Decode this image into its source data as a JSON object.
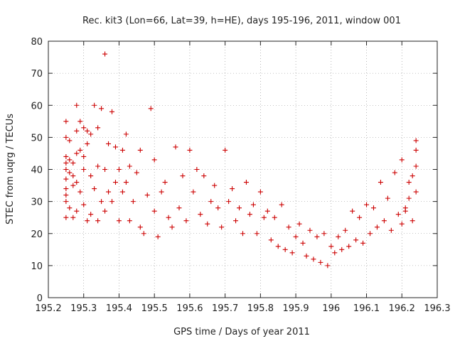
{
  "chart_data": {
    "type": "scatter",
    "title": "Rec. kit3 (Lon=66, Lat=39, h=HE), days 195-196, 2011, window 001",
    "xlabel": "GPS time / Days of year 2011",
    "ylabel": "STEC from uqrg / TECUs",
    "xlim": [
      195.2,
      196.3
    ],
    "ylim": [
      0,
      80
    ],
    "xticks": [
      "195.2",
      "195.3",
      "195.4",
      "195.5",
      "195.6",
      "195.7",
      "195.8",
      "195.9",
      "196",
      "196.1",
      "196.2",
      "196.3"
    ],
    "yticks": [
      "0",
      "10",
      "20",
      "30",
      "40",
      "50",
      "60",
      "70",
      "80"
    ],
    "grid": true,
    "legend": "none",
    "marker": "plus",
    "color": "#cc0000",
    "x": [
      195.25,
      195.25,
      195.25,
      195.25,
      195.25,
      195.25,
      195.25,
      195.25,
      195.25,
      195.25,
      195.26,
      195.26,
      195.26,
      195.26,
      195.27,
      195.27,
      195.27,
      195.27,
      195.28,
      195.28,
      195.28,
      195.28,
      195.28,
      195.29,
      195.29,
      195.29,
      195.3,
      195.3,
      195.3,
      195.3,
      195.31,
      195.31,
      195.31,
      195.32,
      195.32,
      195.32,
      195.33,
      195.33,
      195.34,
      195.34,
      195.34,
      195.35,
      195.35,
      195.36,
      195.36,
      195.36,
      195.37,
      195.37,
      195.38,
      195.38,
      195.39,
      195.39,
      195.4,
      195.4,
      195.41,
      195.41,
      195.42,
      195.42,
      195.43,
      195.43,
      195.44,
      195.45,
      195.46,
      195.46,
      195.47,
      195.48,
      195.49,
      195.5,
      195.5,
      195.51,
      195.52,
      195.53,
      195.54,
      195.55,
      195.56,
      195.57,
      195.58,
      195.59,
      195.6,
      195.61,
      195.62,
      195.63,
      195.64,
      195.65,
      195.66,
      195.67,
      195.68,
      195.69,
      195.7,
      195.71,
      195.72,
      195.73,
      195.74,
      195.75,
      195.76,
      195.77,
      195.78,
      195.79,
      195.8,
      195.81,
      195.82,
      195.83,
      195.84,
      195.85,
      195.86,
      195.87,
      195.88,
      195.89,
      195.9,
      195.91,
      195.92,
      195.93,
      195.94,
      195.95,
      195.96,
      195.97,
      195.98,
      195.99,
      196.0,
      196.01,
      196.02,
      196.03,
      196.04,
      196.05,
      196.06,
      196.07,
      196.08,
      196.09,
      196.1,
      196.11,
      196.12,
      196.13,
      196.14,
      196.15,
      196.16,
      196.17,
      196.18,
      196.19,
      196.2,
      196.21,
      196.22,
      196.23,
      196.24,
      196.24,
      196.24,
      196.24,
      196.23,
      196.22,
      196.21,
      196.2
    ],
    "y": [
      55,
      50,
      44,
      40,
      37,
      34,
      30,
      25,
      42,
      32,
      49,
      43,
      39,
      28,
      38,
      42,
      35,
      25,
      60,
      52,
      45,
      36,
      27,
      55,
      46,
      33,
      53,
      44,
      29,
      40,
      52,
      48,
      24,
      51,
      38,
      26,
      60,
      34,
      53,
      41,
      24,
      59,
      30,
      76,
      40,
      27,
      48,
      33,
      58,
      30,
      47,
      36,
      40,
      24,
      46,
      33,
      51,
      36,
      41,
      24,
      30,
      39,
      46,
      22,
      20,
      32,
      59,
      43,
      27,
      19,
      33,
      36,
      25,
      22,
      47,
      28,
      38,
      24,
      46,
      33,
      40,
      26,
      38,
      23,
      30,
      35,
      28,
      22,
      46,
      30,
      34,
      24,
      28,
      20,
      36,
      26,
      29,
      20,
      33,
      25,
      27,
      18,
      25,
      16,
      29,
      15,
      22,
      14,
      19,
      23,
      17,
      13,
      21,
      12,
      19,
      11,
      20,
      10,
      16,
      14,
      19,
      15,
      21,
      16,
      27,
      18,
      25,
      17,
      29,
      20,
      28,
      22,
      36,
      24,
      31,
      21,
      39,
      26,
      43,
      28,
      36,
      24,
      41,
      33,
      49,
      46,
      38,
      31,
      27,
      23
    ]
  }
}
